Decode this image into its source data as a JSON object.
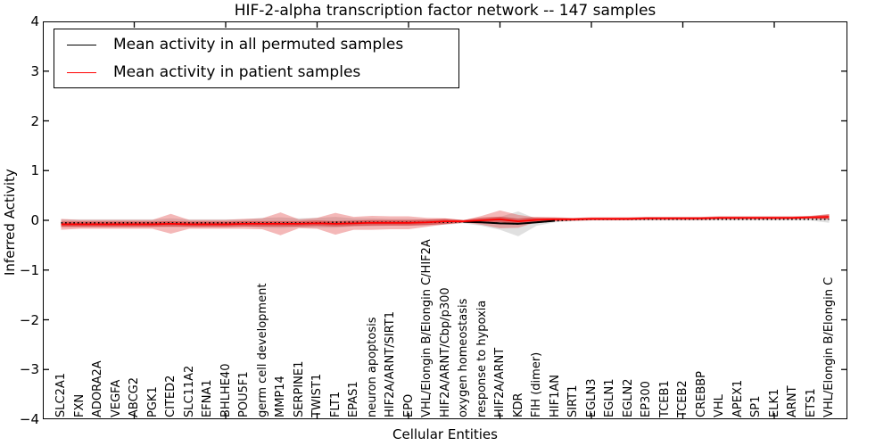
{
  "figure": {
    "title": "HIF-2-alpha transcription factor network -- 147 samples",
    "xlabel": "Cellular Entities",
    "ylabel": "Inferred Activity",
    "ytick_labels": [
      "4",
      "3",
      "2",
      "1",
      "0",
      "−1",
      "−2",
      "−3",
      "−4"
    ],
    "legend": {
      "items": [
        {
          "label": "Mean activity in all permuted samples",
          "color": "#000000"
        },
        {
          "label": "Mean activity in patient samples",
          "color": "#ff0000"
        }
      ]
    }
  },
  "chart_data": {
    "type": "line",
    "title": "HIF-2-alpha transcription factor network -- 147 samples",
    "subtitle": "",
    "xlabel": "Cellular Entities",
    "ylabel": "Inferred Activity",
    "ylim": [
      -4,
      4
    ],
    "yticks": [
      4,
      3,
      2,
      1,
      0,
      -1,
      -2,
      -3,
      -4
    ],
    "grid": false,
    "legend_position": "upper left",
    "x_major_tick_every": 5,
    "categories": [
      "SLC2A1",
      "FXN",
      "ADORA2A",
      "VEGFA",
      "ABCG2",
      "PGK1",
      "CITED2",
      "SLC11A2",
      "EFNA1",
      "BHLHE40",
      "POU5F1",
      "germ cell development",
      "MMP14",
      "SERPINE1",
      "TWIST1",
      "FLT1",
      "EPAS1",
      "neuron apoptosis",
      "HIF2A/ARNT/SIRT1",
      "EPO",
      "VHL/Elongin B/Elongin C/HIF2A",
      "HIF2A/ARNT/Cbp/p300",
      "oxygen homeostasis",
      "response to hypoxia",
      "HIF2A/ARNT",
      "KDR",
      "FIH (dimer)",
      "HIF1AN",
      "SIRT1",
      "EGLN3",
      "EGLN1",
      "EGLN2",
      "EP300",
      "TCEB1",
      "TCEB2",
      "CREBBP",
      "VHL",
      "APEX1",
      "SP1",
      "ELK1",
      "ARNT",
      "ETS1",
      "VHL/Elongin B/Elongin C"
    ],
    "series": [
      {
        "name": "Mean activity in all permuted samples",
        "color": "#000000",
        "linestyle": "dotted",
        "band_color": "#999999",
        "band_opacity": 0.3,
        "values": [
          -0.05,
          -0.05,
          -0.05,
          -0.05,
          -0.05,
          -0.05,
          -0.05,
          -0.05,
          -0.05,
          -0.05,
          -0.05,
          -0.05,
          -0.05,
          -0.05,
          -0.05,
          -0.04,
          -0.04,
          -0.04,
          -0.04,
          -0.04,
          -0.04,
          -0.04,
          -0.03,
          -0.04,
          -0.06,
          -0.07,
          -0.04,
          -0.01,
          0.01,
          0.02,
          0.02,
          0.02,
          0.02,
          0.02,
          0.02,
          0.02,
          0.02,
          0.02,
          0.02,
          0.02,
          0.02,
          0.02,
          0.02
        ],
        "band_halfwidth": [
          0.07,
          0.07,
          0.07,
          0.07,
          0.07,
          0.07,
          0.09,
          0.07,
          0.07,
          0.07,
          0.07,
          0.1,
          0.11,
          0.09,
          0.1,
          0.11,
          0.08,
          0.08,
          0.07,
          0.07,
          0.06,
          0.05,
          0.03,
          0.07,
          0.13,
          0.25,
          0.07,
          0.03,
          0.025,
          0.025,
          0.025,
          0.025,
          0.025,
          0.025,
          0.025,
          0.025,
          0.025,
          0.025,
          0.025,
          0.025,
          0.025,
          0.025,
          0.07
        ]
      },
      {
        "name": "Mean activity in patient samples",
        "color": "#ff0000",
        "linestyle": "solid",
        "band_color": "#dd2222",
        "band_opacity": 0.32,
        "values": [
          -0.08,
          -0.08,
          -0.08,
          -0.08,
          -0.08,
          -0.08,
          -0.07,
          -0.08,
          -0.08,
          -0.08,
          -0.07,
          -0.07,
          -0.07,
          -0.07,
          -0.06,
          -0.07,
          -0.06,
          -0.05,
          -0.05,
          -0.05,
          -0.04,
          -0.02,
          -0.02,
          0.0,
          0.02,
          -0.02,
          0.01,
          0.02,
          0.02,
          0.03,
          0.03,
          0.03,
          0.04,
          0.04,
          0.04,
          0.04,
          0.05,
          0.05,
          0.05,
          0.05,
          0.05,
          0.06,
          0.07
        ],
        "band_halfwidth": [
          0.11,
          0.09,
          0.09,
          0.09,
          0.09,
          0.09,
          0.2,
          0.09,
          0.09,
          0.09,
          0.1,
          0.11,
          0.23,
          0.09,
          0.11,
          0.22,
          0.13,
          0.14,
          0.13,
          0.13,
          0.09,
          0.06,
          0.02,
          0.09,
          0.18,
          0.13,
          0.045,
          0.03,
          0.02,
          0.02,
          0.02,
          0.02,
          0.02,
          0.02,
          0.02,
          0.02,
          0.02,
          0.02,
          0.02,
          0.02,
          0.02,
          0.02,
          0.045
        ]
      }
    ]
  }
}
